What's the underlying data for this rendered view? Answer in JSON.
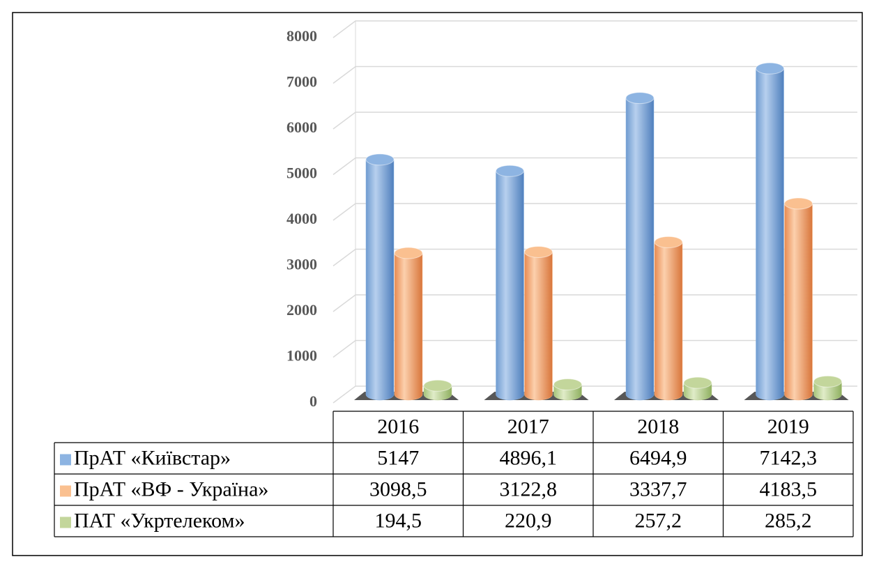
{
  "chart_data": {
    "type": "bar",
    "categories": [
      "2016",
      "2017",
      "2018",
      "2019"
    ],
    "series": [
      {
        "name": "ПрАТ «Київстар»",
        "color": "#8db4e2",
        "values": [
          5147,
          4896.1,
          6494.9,
          7142.3
        ],
        "value_labels": [
          "5147",
          "4896,1",
          "6494,9",
          "7142,3"
        ]
      },
      {
        "name": "ПрАТ «ВФ - Україна»",
        "color": "#fac090",
        "values": [
          3098.5,
          3122.8,
          3337.7,
          4183.5
        ],
        "value_labels": [
          "3098,5",
          "3122,8",
          "3337,7",
          "4183,5"
        ]
      },
      {
        "name": "ПАТ «Укртелеком»",
        "color": "#c3d69b",
        "values": [
          194.5,
          220.9,
          257.2,
          285.2
        ],
        "value_labels": [
          "194,5",
          "220,9",
          "257,2",
          "285,2"
        ]
      }
    ],
    "ylim": [
      0,
      8000
    ],
    "yticks": [
      0,
      1000,
      2000,
      3000,
      4000,
      5000,
      6000,
      7000,
      8000
    ],
    "grid": true
  }
}
